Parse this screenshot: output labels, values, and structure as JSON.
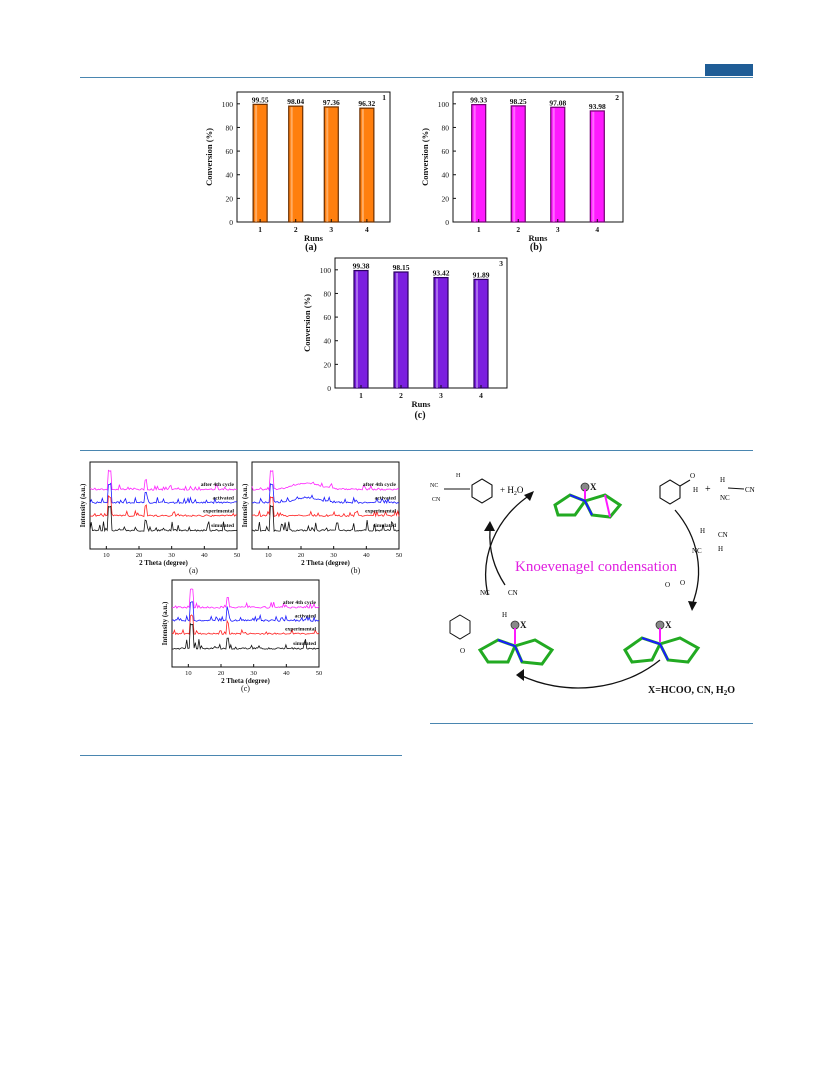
{
  "header": {
    "accent_color": "#1f5d96"
  },
  "conversion_figure": {
    "y_label": "Conversion (%)",
    "x_label": "Runs",
    "panels": [
      {
        "tag": "(a)",
        "number": "1",
        "color": "#ff7f0e",
        "edge": "#6b2f00",
        "runs": [
          "1",
          "2",
          "3",
          "4"
        ],
        "values": [
          99.55,
          98.04,
          97.36,
          96.32
        ],
        "labels": [
          "99.55",
          "98.04",
          "97.36",
          "96.32"
        ]
      },
      {
        "tag": "(b)",
        "number": "2",
        "color": "#ff1aff",
        "edge": "#700070",
        "runs": [
          "1",
          "2",
          "3",
          "4"
        ],
        "values": [
          99.33,
          98.25,
          97.08,
          93.98
        ],
        "labels": [
          "99.33",
          "98.25",
          "97.08",
          "93.98"
        ]
      },
      {
        "tag": "(c)",
        "number": "3",
        "color": "#7b1fe0",
        "edge": "#2b0060",
        "runs": [
          "1",
          "2",
          "3",
          "4"
        ],
        "values": [
          99.38,
          98.15,
          93.42,
          91.89
        ],
        "labels": [
          "99.38",
          "98.15",
          "93.42",
          "91.89"
        ]
      }
    ],
    "y_ticks": [
      "0",
      "20",
      "40",
      "60",
      "80",
      "100"
    ]
  },
  "chart_data": [
    {
      "type": "bar",
      "categories": [
        "1",
        "2",
        "3",
        "4"
      ],
      "values": [
        99.55,
        98.04,
        97.36,
        96.32
      ],
      "xlabel": "Runs",
      "ylabel": "Conversion (%)",
      "ylim": [
        0,
        110
      ]
    },
    {
      "type": "bar",
      "categories": [
        "1",
        "2",
        "3",
        "4"
      ],
      "values": [
        99.33,
        98.25,
        97.08,
        93.98
      ],
      "xlabel": "Runs",
      "ylabel": "Conversion (%)",
      "ylim": [
        0,
        110
      ]
    },
    {
      "type": "bar",
      "categories": [
        "1",
        "2",
        "3",
        "4"
      ],
      "values": [
        99.38,
        98.15,
        93.42,
        91.89
      ],
      "xlabel": "Runs",
      "ylabel": "Conversion (%)",
      "ylim": [
        0,
        110
      ]
    }
  ],
  "xrd_figure": {
    "x_label": "2 Theta (degree)",
    "y_label": "Intensity (a.u.)",
    "x_ticks": [
      "10",
      "20",
      "30",
      "40",
      "50"
    ],
    "traces": [
      {
        "label": "after 4th cycle",
        "color": "#ff22ff"
      },
      {
        "label": "activated",
        "color": "#1a1aff"
      },
      {
        "label": "experimental",
        "color": "#ff2020"
      },
      {
        "label": "simulated",
        "color": "#111111"
      }
    ],
    "tags": [
      "(a)",
      "(b)",
      "(c)"
    ]
  },
  "scheme": {
    "title": "Knoevenagel condensation",
    "title_color": "#e020e0",
    "footer": "X=HCOO, CN, H2O",
    "x_label": "X",
    "water": "+ H2O"
  }
}
